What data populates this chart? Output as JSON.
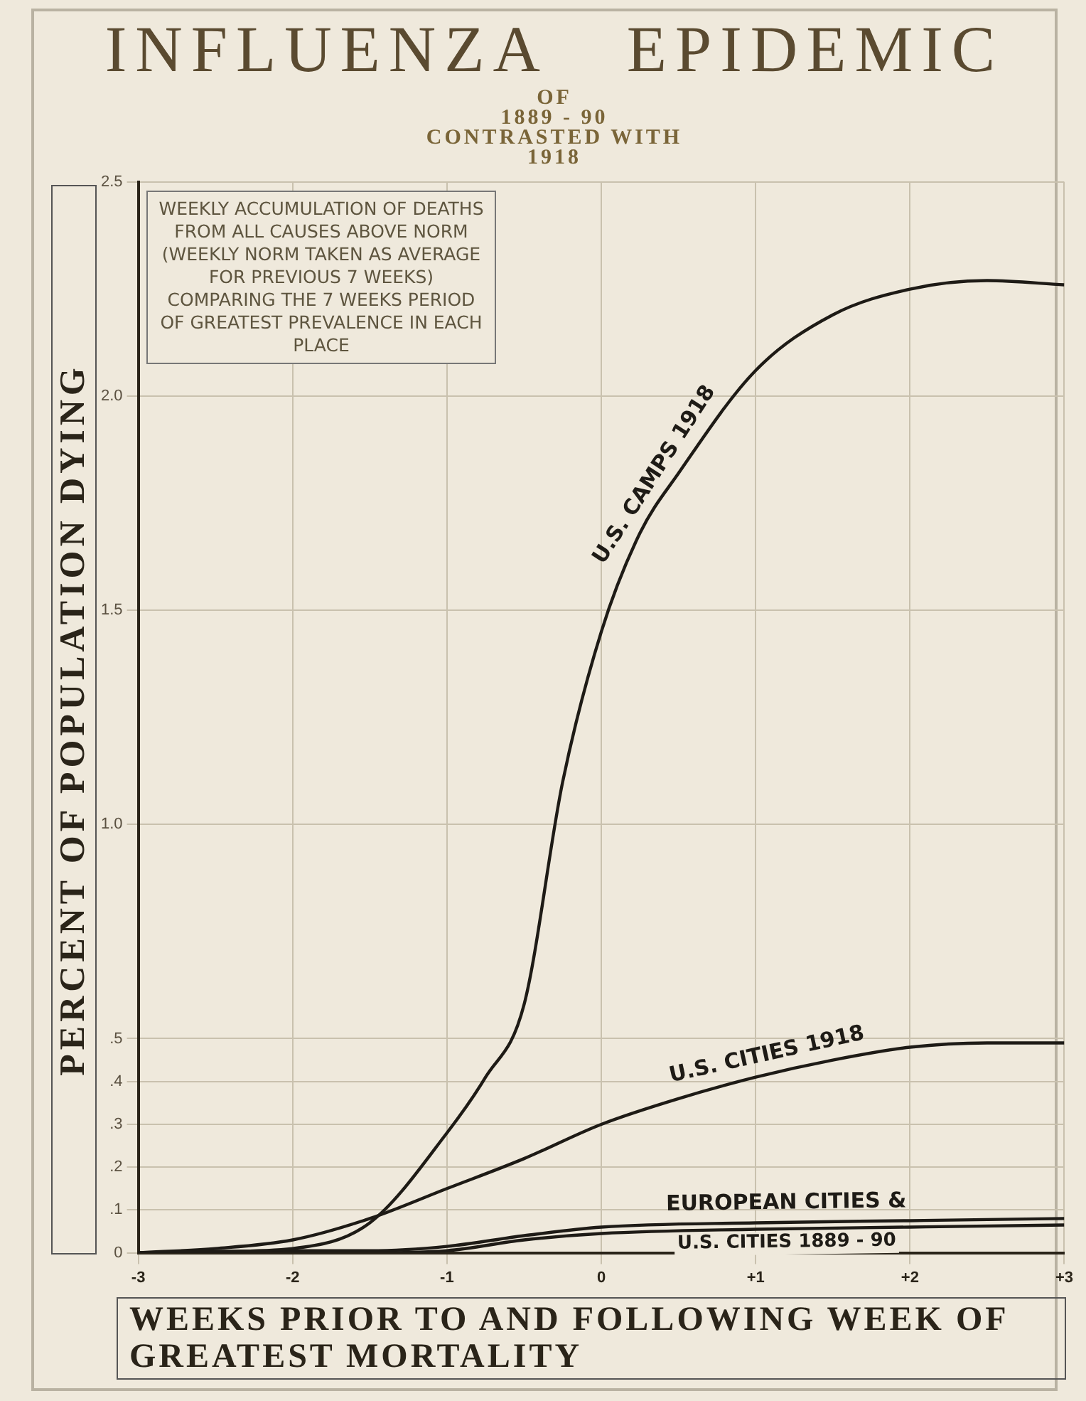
{
  "chart_data": {
    "type": "line",
    "title": "INFLUENZA EPIDEMIC",
    "subtitle": "OF\n1889 - 90\nCONTRASTED WITH\n1918",
    "xlabel": "WEEKS PRIOR TO AND FOLLOWING WEEK OF GREATEST MORTALITY",
    "ylabel": "PERCENT OF POPULATION DYING",
    "annotations": [
      "WEEKLY ACCUMULATION OF DEATHS FROM ALL CAUSES ABOVE NORM (WEEKLY NORM TAKEN AS AVERAGE FOR PREVIOUS 7 WEEKS) COMPARING THE 7 WEEKS PERIOD OF GREATEST PREVALENCE IN EACH PLACE"
    ],
    "xlim": [
      -3,
      3
    ],
    "xticks": [
      -3,
      -2,
      -1,
      0,
      {
        "value": 1,
        "label": "+1"
      },
      {
        "value": 2,
        "label": "+2"
      },
      {
        "value": 3,
        "label": "+3"
      }
    ],
    "ylim": [
      0,
      2.5
    ],
    "yticks": [
      0,
      {
        "value": 0.1,
        "label": ".1"
      },
      {
        "value": 0.2,
        "label": ".2"
      },
      {
        "value": 0.3,
        "label": ".3"
      },
      {
        "value": 0.4,
        "label": ".4"
      },
      {
        "value": 0.5,
        "label": ".5"
      },
      {
        "value": 1,
        "label": "1.0"
      },
      1.5,
      {
        "value": 2,
        "label": "2.0"
      },
      2.5
    ],
    "grid": true,
    "legend": false,
    "marker": "none",
    "line_style": "solid",
    "series": [
      {
        "name": "U.S. CAMPS 1918",
        "color": "#1e1b16",
        "x": [
          -3,
          -2.5,
          -2,
          -1.5,
          -1,
          -0.75,
          -0.5,
          -0.25,
          0,
          0.25,
          0.5,
          1,
          1.5,
          2,
          2.5,
          3
        ],
        "values": [
          0,
          0.003,
          0.01,
          0.07,
          0.28,
          0.41,
          0.58,
          1.1,
          1.45,
          1.68,
          1.82,
          2.06,
          2.19,
          2.25,
          2.27,
          2.26
        ]
      },
      {
        "name": "U.S. CITIES 1918",
        "color": "#1e1b16",
        "x": [
          -3,
          -2.5,
          -2,
          -1.5,
          -1,
          -0.5,
          0,
          0.5,
          1,
          1.5,
          2,
          2.5,
          3
        ],
        "values": [
          0,
          0.01,
          0.03,
          0.08,
          0.15,
          0.22,
          0.3,
          0.36,
          0.41,
          0.45,
          0.48,
          0.49,
          0.49
        ]
      },
      {
        "name": "EUROPEAN CITIES &",
        "color": "#1e1b16",
        "x": [
          -3,
          -2,
          -1.5,
          -1,
          -0.5,
          0,
          1,
          2,
          3
        ],
        "values": [
          0,
          0.005,
          0.005,
          0.015,
          0.04,
          0.06,
          0.07,
          0.075,
          0.08
        ]
      },
      {
        "name": "U.S. CITIES 1889 - 90",
        "color": "#1e1b16",
        "x": [
          -3,
          -2,
          -1.5,
          -1,
          -0.5,
          0,
          1,
          2,
          3
        ],
        "values": [
          0,
          0,
          0,
          0.005,
          0.03,
          0.045,
          0.055,
          0.06,
          0.065
        ]
      }
    ]
  }
}
